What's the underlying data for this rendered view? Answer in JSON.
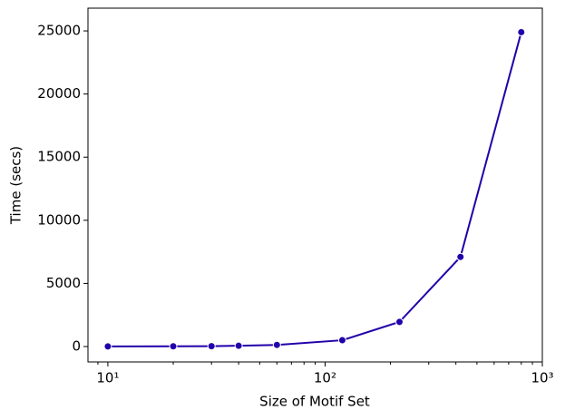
{
  "chart_data": {
    "type": "line",
    "x_label": "Size of Motif Set",
    "y_label": "Time (secs)",
    "x": [
      10,
      20,
      30,
      40,
      60,
      120,
      220,
      420,
      800
    ],
    "series": [
      {
        "name": "Time",
        "color": "#2200aa",
        "values": [
          10,
          20,
          30,
          60,
          130,
          500,
          1950,
          7100,
          24900
        ]
      }
    ],
    "x_scale": "log",
    "xlim": [
      8.1,
      1000
    ],
    "xticks": [
      {
        "value": 10,
        "label": "10¹"
      },
      {
        "value": 100,
        "label": "10²"
      },
      {
        "value": 1000,
        "label": "10³"
      }
    ],
    "ylim": [
      -1220,
      26800
    ],
    "yticks": [
      0,
      5000,
      10000,
      15000,
      20000,
      25000
    ]
  }
}
